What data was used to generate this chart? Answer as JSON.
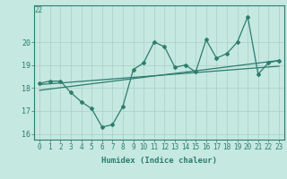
{
  "title": "",
  "xlabel": "Humidex (Indice chaleur)",
  "x_values": [
    0,
    1,
    2,
    3,
    4,
    5,
    6,
    7,
    8,
    9,
    10,
    11,
    12,
    13,
    14,
    15,
    16,
    17,
    18,
    19,
    20,
    21,
    22,
    23
  ],
  "main_line_y": [
    18.2,
    18.3,
    18.3,
    17.8,
    17.4,
    17.1,
    16.3,
    16.4,
    17.2,
    18.8,
    19.1,
    20.0,
    19.8,
    18.9,
    19.0,
    18.7,
    20.1,
    19.3,
    19.5,
    20.0,
    21.1,
    18.6,
    19.1,
    19.2
  ],
  "trend_line1_x": [
    0,
    23
  ],
  "trend_line1_y": [
    18.15,
    18.95
  ],
  "trend_line2_x": [
    0,
    23
  ],
  "trend_line2_y": [
    17.9,
    19.2
  ],
  "line_color": "#2d7d6e",
  "bg_color": "#c5e8e0",
  "grid_color": "#a8cfc6",
  "xlim": [
    -0.5,
    23.5
  ],
  "ylim": [
    15.75,
    21.6
  ],
  "yticks": [
    16,
    17,
    18,
    19,
    20
  ],
  "xticks": [
    0,
    1,
    2,
    3,
    4,
    5,
    6,
    7,
    8,
    9,
    10,
    11,
    12,
    13,
    14,
    15,
    16,
    17,
    18,
    19,
    20,
    21,
    22,
    23
  ],
  "top_label": "22",
  "tick_fontsize": 5.5,
  "xlabel_fontsize": 6.5
}
